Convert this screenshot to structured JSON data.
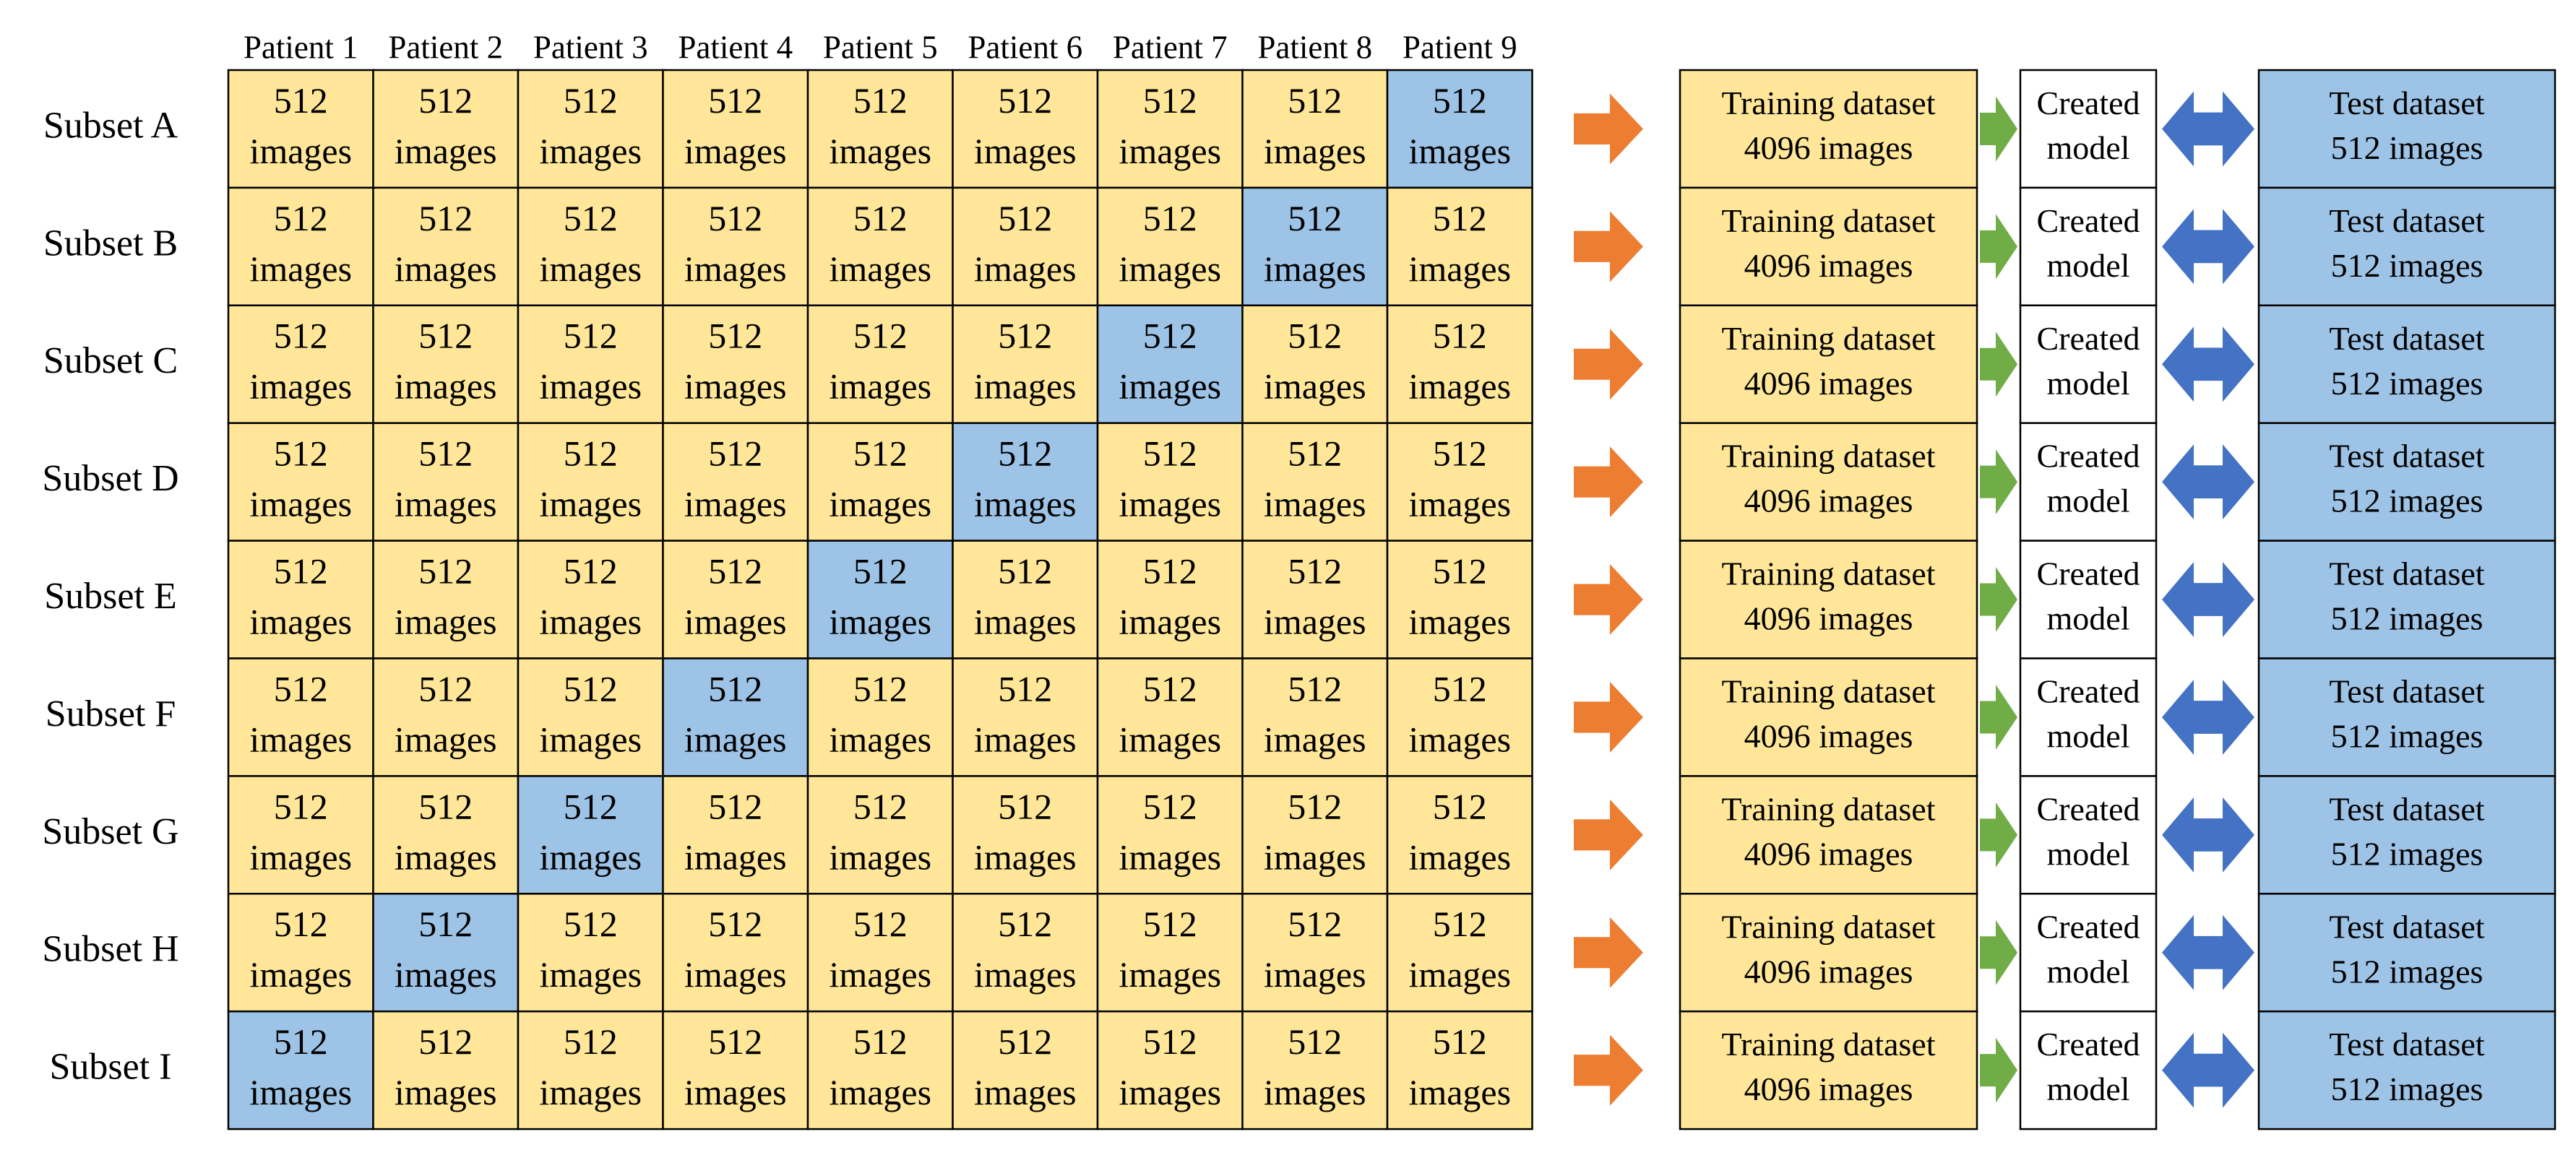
{
  "header": {
    "patients": [
      "Patient 1",
      "Patient 2",
      "Patient 3",
      "Patient 4",
      "Patient 5",
      "Patient 6",
      "Patient 7",
      "Patient 8",
      "Patient 9"
    ]
  },
  "cell_text": {
    "count": "512",
    "unit": "images"
  },
  "rows": [
    {
      "subset": "Subset A",
      "test_patient_index": 8
    },
    {
      "subset": "Subset B",
      "test_patient_index": 7
    },
    {
      "subset": "Subset C",
      "test_patient_index": 6
    },
    {
      "subset": "Subset D",
      "test_patient_index": 5
    },
    {
      "subset": "Subset E",
      "test_patient_index": 4
    },
    {
      "subset": "Subset F",
      "test_patient_index": 3
    },
    {
      "subset": "Subset G",
      "test_patient_index": 2
    },
    {
      "subset": "Subset H",
      "test_patient_index": 1
    },
    {
      "subset": "Subset I",
      "test_patient_index": 0
    }
  ],
  "pipeline": {
    "training_line1": "Training dataset",
    "training_line2": "4096 images",
    "model_line1": "Created",
    "model_line2": "model",
    "test_line1": "Test dataset",
    "test_line2": "512 images"
  },
  "colors": {
    "train_fill": "#FFE699",
    "test_fill": "#9DC3E6",
    "orange_arrow": "#ED7D31",
    "green_arrow": "#70AD47",
    "blue_arrow": "#4472C4",
    "border": "#000000",
    "model_fill": "#FFFFFF"
  }
}
